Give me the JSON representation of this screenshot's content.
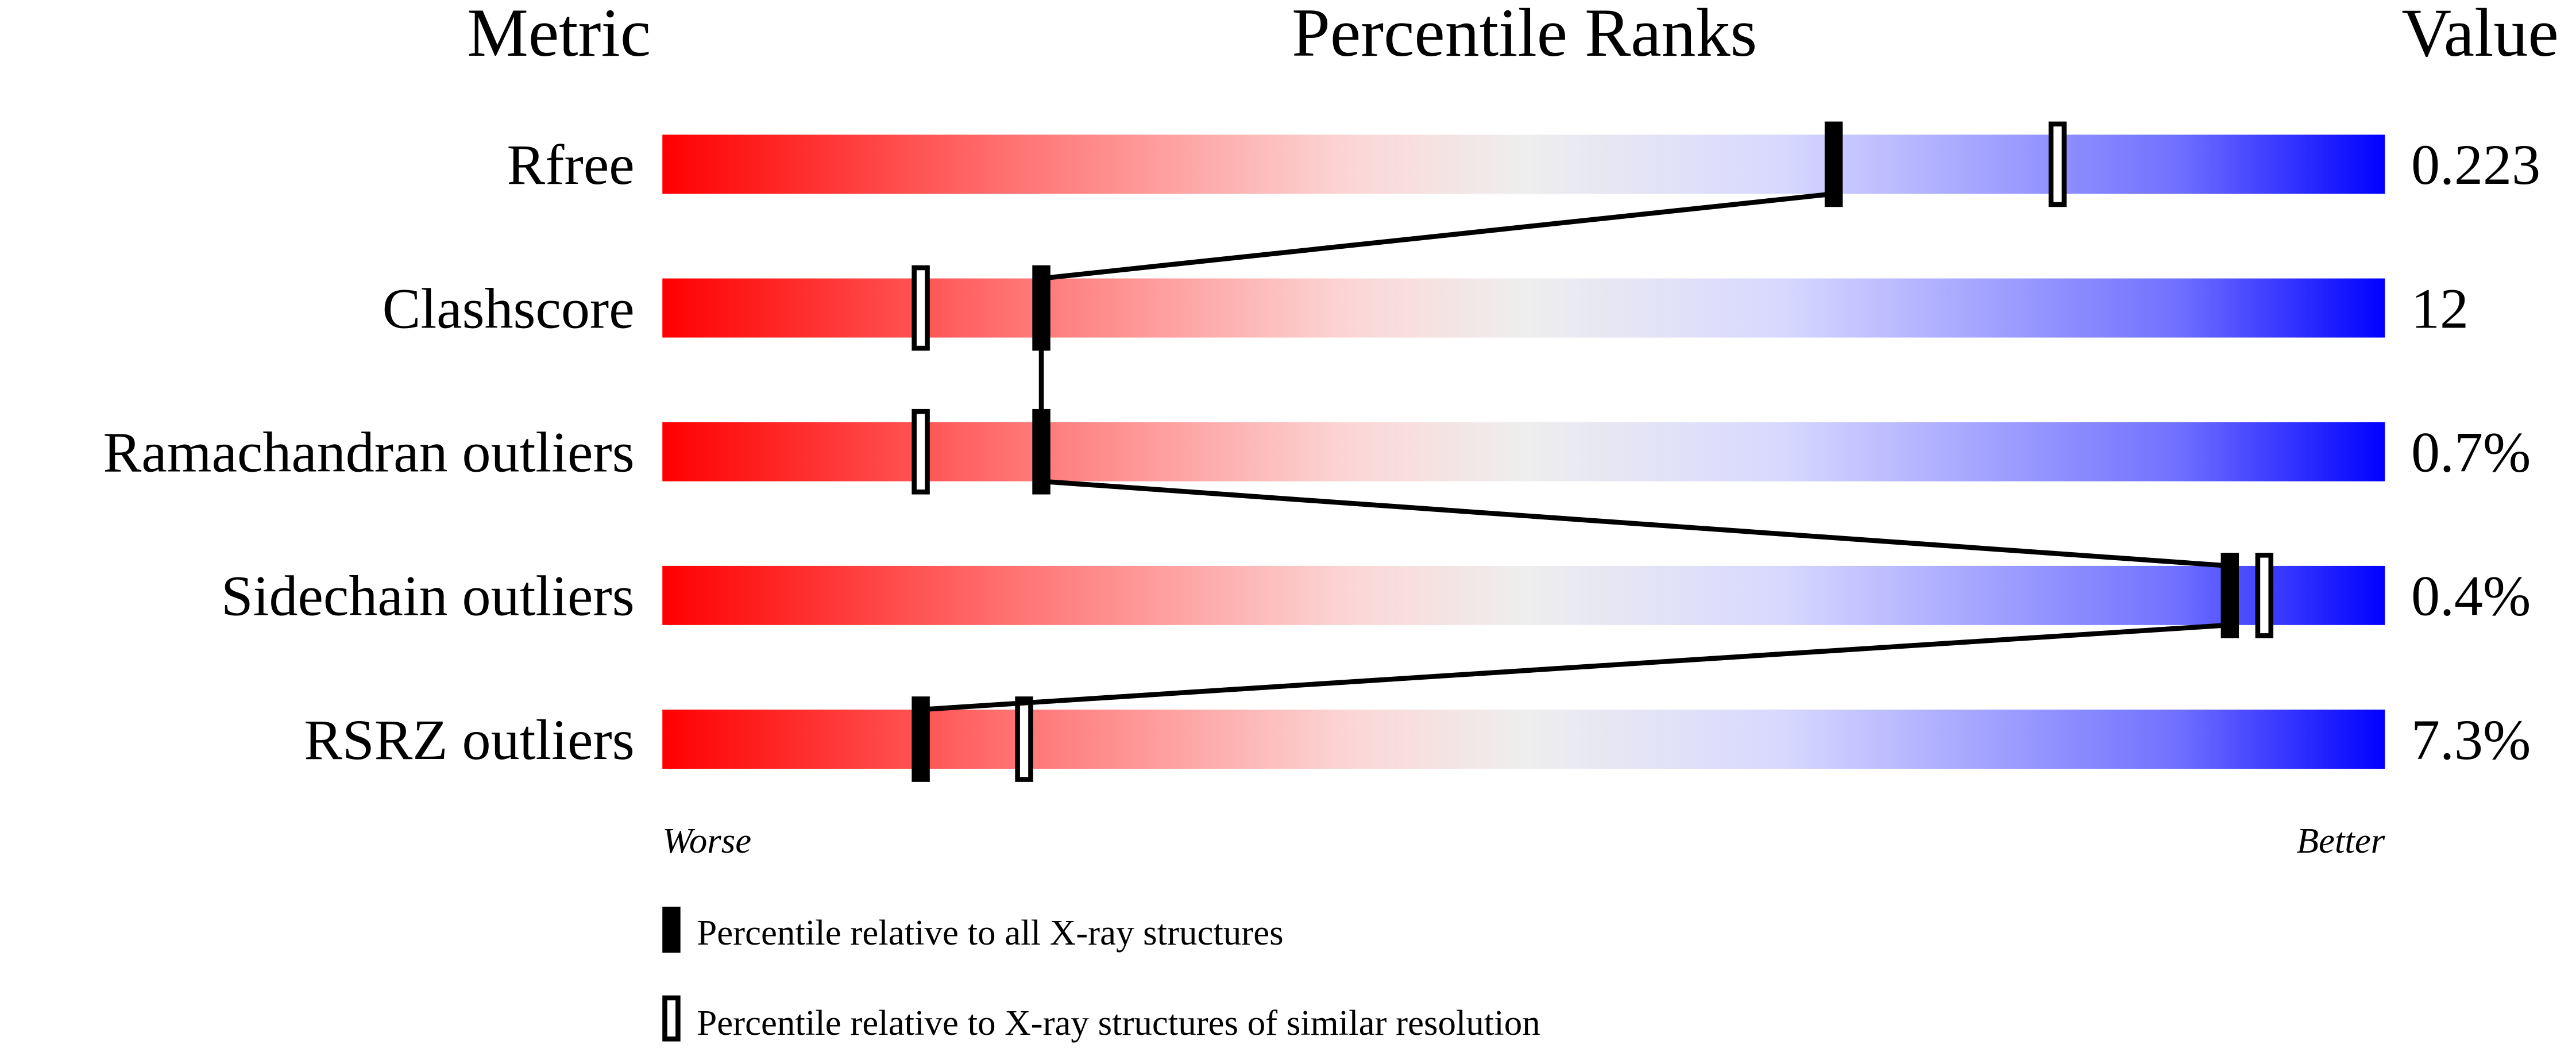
{
  "chart_data": {
    "type": "percentile-bar",
    "headers": {
      "metric": "Metric",
      "ranks": "Percentile Ranks",
      "value": "Value"
    },
    "xlim": [
      0,
      100
    ],
    "axis_labels": {
      "left": "Worse",
      "right": "Better"
    },
    "gradient_colors": [
      "#ff0000",
      "#ff7070",
      "#fcd6d6",
      "#eeeeee",
      "#d8d8ff",
      "#7070ff",
      "#0000ff"
    ],
    "rows": [
      {
        "metric": "Rfree",
        "value": "0.223",
        "percentile_all": 68,
        "percentile_similar": 81
      },
      {
        "metric": "Clashscore",
        "value": "12",
        "percentile_all": 22,
        "percentile_similar": 15
      },
      {
        "metric": "Ramachandran outliers",
        "value": "0.7%",
        "percentile_all": 22,
        "percentile_similar": 15
      },
      {
        "metric": "Sidechain outliers",
        "value": "0.4%",
        "percentile_all": 91,
        "percentile_similar": 93
      },
      {
        "metric": "RSRZ outliers",
        "value": "7.3%",
        "percentile_all": 15,
        "percentile_similar": 21
      }
    ],
    "legend": [
      {
        "marker": "filled",
        "label": "Percentile relative to all X-ray structures"
      },
      {
        "marker": "open",
        "label": "Percentile relative to X-ray structures of similar resolution"
      }
    ]
  }
}
